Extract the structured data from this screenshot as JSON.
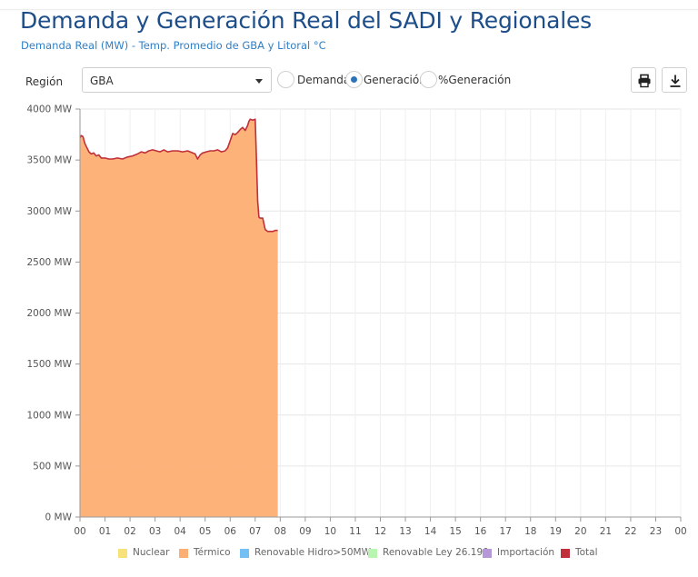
{
  "header": {
    "title": "Demanda y Generación Real del SADI y Regionales",
    "subtitle": "Demanda Real (MW) - Temp. Promedio de GBA y Litoral °C"
  },
  "controls": {
    "region_label": "Región",
    "region_value": "GBA",
    "radios": [
      {
        "label": "Demanda",
        "checked": false
      },
      {
        "label": "Generación",
        "checked": true
      },
      {
        "label": "%Generación",
        "checked": false
      }
    ],
    "print_icon": "print-icon",
    "download_icon": "download-icon"
  },
  "chart_data": {
    "type": "area",
    "x_ticks": [
      "00",
      "01",
      "02",
      "03",
      "04",
      "05",
      "06",
      "07",
      "08",
      "09",
      "10",
      "11",
      "12",
      "13",
      "14",
      "15",
      "16",
      "17",
      "18",
      "19",
      "20",
      "21",
      "22",
      "23",
      "00"
    ],
    "y_ticks": [
      "0 MW",
      "500 MW",
      "1000 MW",
      "1500 MW",
      "2000 MW",
      "2500 MW",
      "3000 MW",
      "3500 MW",
      "4000 MW"
    ],
    "ylim": [
      0,
      4000
    ],
    "xlim": [
      0,
      24
    ],
    "grid": true,
    "legend_position": "bottom",
    "series": [
      {
        "name": "Nuclear",
        "color": "#f7e27a",
        "x": [],
        "values": []
      },
      {
        "name": "Térmico",
        "color": "#fdae73",
        "x": [
          0.0,
          0.05,
          0.12,
          0.2,
          0.28,
          0.36,
          0.45,
          0.55,
          0.65,
          0.75,
          0.85,
          1.0,
          1.15,
          1.3,
          1.5,
          1.7,
          1.9,
          2.1,
          2.3,
          2.45,
          2.6,
          2.75,
          2.9,
          3.05,
          3.2,
          3.35,
          3.5,
          3.7,
          3.9,
          4.1,
          4.3,
          4.5,
          4.6,
          4.7,
          4.8,
          4.9,
          5.05,
          5.2,
          5.35,
          5.5,
          5.65,
          5.8,
          5.9,
          6.0,
          6.1,
          6.2,
          6.3,
          6.4,
          6.5,
          6.6,
          6.7,
          6.75,
          6.8,
          6.9,
          7.0,
          7.05,
          7.1,
          7.15,
          7.2,
          7.3,
          7.4,
          7.5,
          7.6,
          7.7,
          7.8,
          7.9
        ],
        "values": [
          3720,
          3740,
          3730,
          3660,
          3620,
          3580,
          3560,
          3570,
          3540,
          3550,
          3520,
          3520,
          3510,
          3510,
          3520,
          3510,
          3530,
          3540,
          3560,
          3580,
          3570,
          3590,
          3600,
          3590,
          3580,
          3600,
          3580,
          3590,
          3590,
          3580,
          3590,
          3570,
          3560,
          3510,
          3550,
          3570,
          3580,
          3590,
          3590,
          3600,
          3580,
          3590,
          3620,
          3690,
          3760,
          3750,
          3770,
          3800,
          3820,
          3790,
          3840,
          3880,
          3900,
          3890,
          3900,
          3500,
          3100,
          2940,
          2930,
          2930,
          2820,
          2800,
          2800,
          2800,
          2810,
          2810
        ]
      },
      {
        "name": "Renovable Hidro>50MW",
        "color": "#74c0f5",
        "x": [],
        "values": []
      },
      {
        "name": "Renovable Ley 26.190",
        "color": "#b7f5b0",
        "x": [],
        "values": []
      },
      {
        "name": "Importación",
        "color": "#b697d8",
        "x": [],
        "values": []
      },
      {
        "name": "Total",
        "color": "#c0303a",
        "x": [
          0.0,
          0.05,
          0.12,
          0.2,
          0.28,
          0.36,
          0.45,
          0.55,
          0.65,
          0.75,
          0.85,
          1.0,
          1.15,
          1.3,
          1.5,
          1.7,
          1.9,
          2.1,
          2.3,
          2.45,
          2.6,
          2.75,
          2.9,
          3.05,
          3.2,
          3.35,
          3.5,
          3.7,
          3.9,
          4.1,
          4.3,
          4.5,
          4.6,
          4.7,
          4.8,
          4.9,
          5.05,
          5.2,
          5.35,
          5.5,
          5.65,
          5.8,
          5.9,
          6.0,
          6.1,
          6.2,
          6.3,
          6.4,
          6.5,
          6.6,
          6.7,
          6.75,
          6.8,
          6.9,
          7.0,
          7.05,
          7.1,
          7.15,
          7.2,
          7.3,
          7.4,
          7.5,
          7.6,
          7.7,
          7.8,
          7.9
        ],
        "values": [
          3720,
          3740,
          3730,
          3660,
          3620,
          3580,
          3560,
          3570,
          3540,
          3550,
          3520,
          3520,
          3510,
          3510,
          3520,
          3510,
          3530,
          3540,
          3560,
          3580,
          3570,
          3590,
          3600,
          3590,
          3580,
          3600,
          3580,
          3590,
          3590,
          3580,
          3590,
          3570,
          3560,
          3510,
          3550,
          3570,
          3580,
          3590,
          3590,
          3600,
          3580,
          3590,
          3620,
          3690,
          3760,
          3750,
          3770,
          3800,
          3820,
          3790,
          3840,
          3880,
          3900,
          3890,
          3900,
          3500,
          3100,
          2940,
          2930,
          2930,
          2820,
          2800,
          2800,
          2800,
          2810,
          2810
        ]
      }
    ]
  }
}
